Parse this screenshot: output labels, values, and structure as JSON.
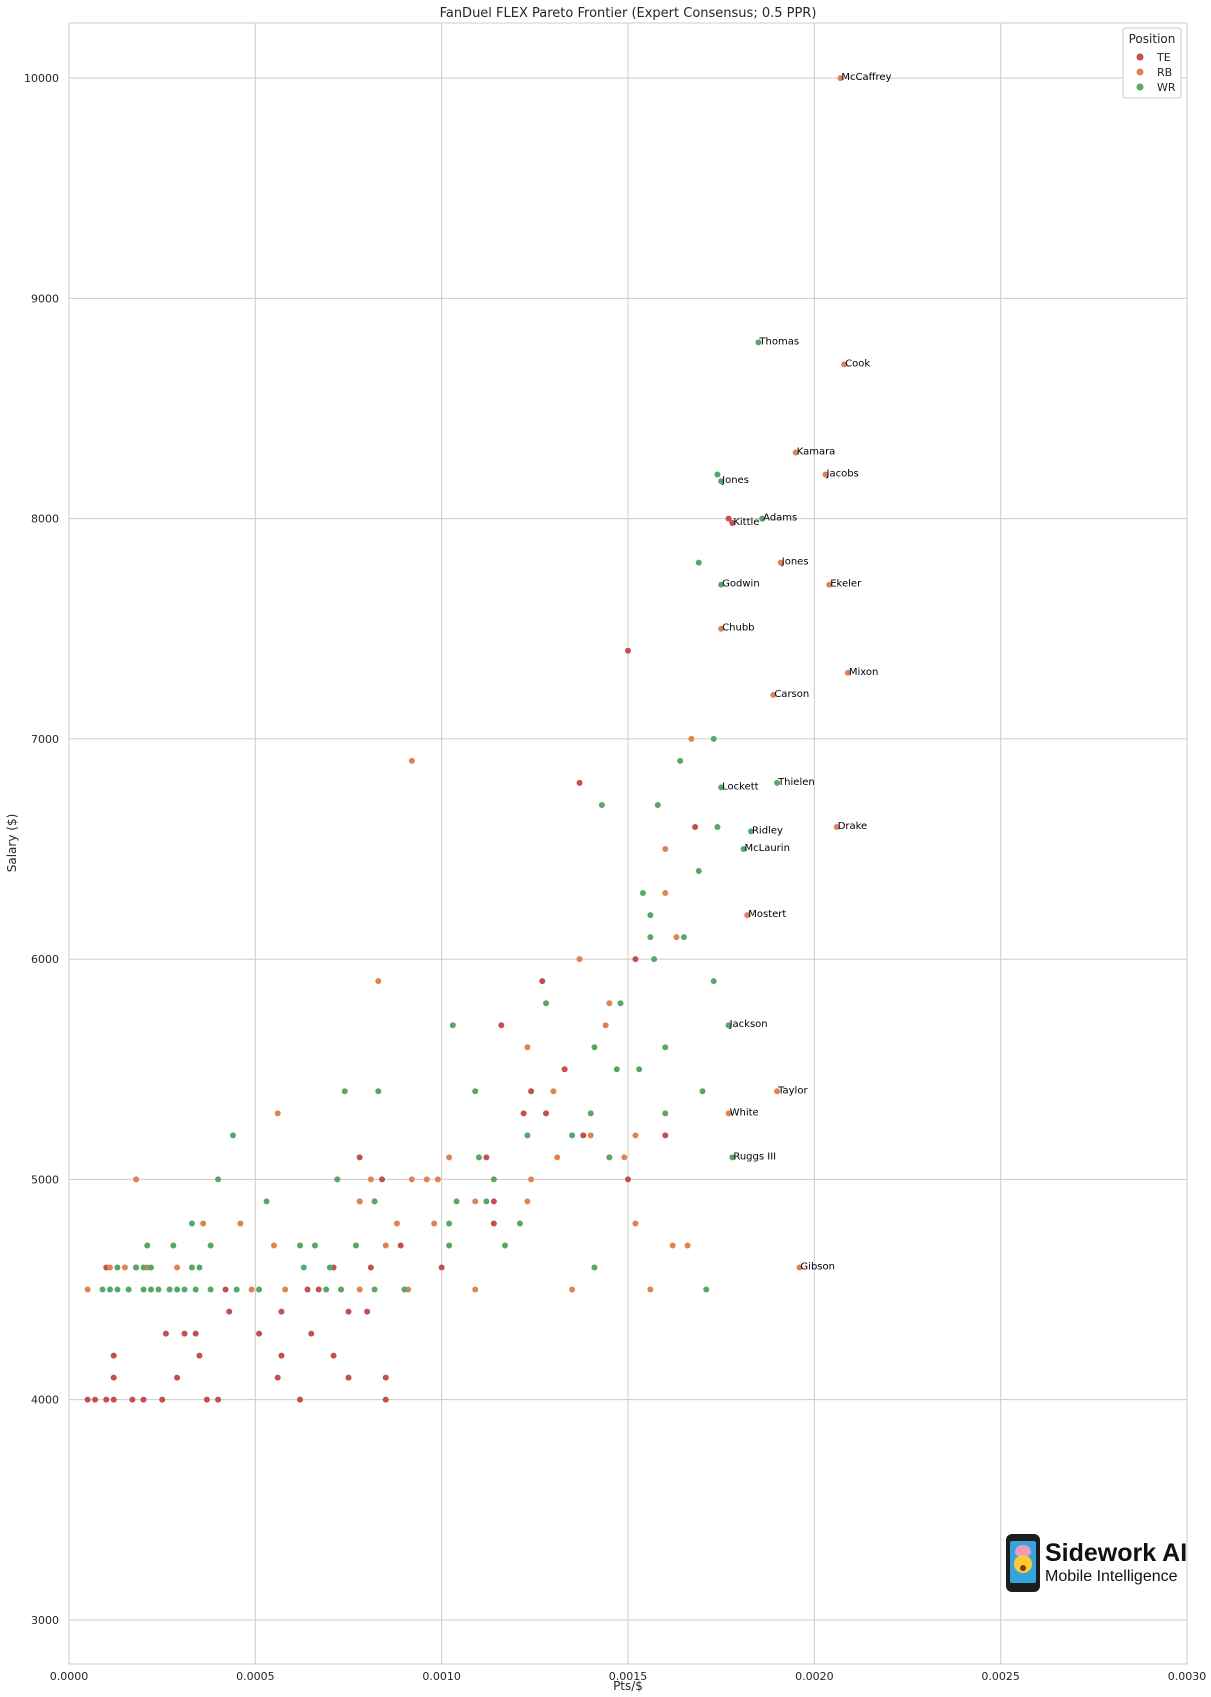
{
  "chart_data": {
    "type": "scatter",
    "title": "FanDuel FLEX Pareto Frontier (Expert Consensus; 0.5 PPR)",
    "xlabel": "Pts/$",
    "ylabel": "Salary ($)",
    "xlim": [
      0,
      0.003
    ],
    "ylim": [
      2800,
      10250
    ],
    "xticks": [
      0,
      0.0005,
      0.001,
      0.0015,
      0.002,
      0.0025,
      0.003
    ],
    "xtick_labels": [
      "0.0000",
      "0.0005",
      "0.0010",
      "0.0015",
      "0.0020",
      "0.0025",
      "0.0030"
    ],
    "yticks": [
      3000,
      4000,
      5000,
      6000,
      7000,
      8000,
      9000,
      10000
    ],
    "ytick_labels": [
      "3000",
      "4000",
      "5000",
      "6000",
      "7000",
      "8000",
      "9000",
      "10000"
    ],
    "grid": true,
    "legend": {
      "title": "Position",
      "placement": "top-right"
    },
    "series": [
      {
        "name": "TE",
        "color": "#c44e52",
        "points": [
          [
            5e-05,
            4000
          ],
          [
            7e-05,
            4000
          ],
          [
            0.0001,
            4000
          ],
          [
            0.00012,
            4000
          ],
          [
            0.00017,
            4000
          ],
          [
            0.0002,
            4000
          ],
          [
            0.00025,
            4000
          ],
          [
            0.00037,
            4000
          ],
          [
            0.0004,
            4000
          ],
          [
            0.00062,
            4000
          ],
          [
            0.00085,
            4000
          ],
          [
            0.00012,
            4100
          ],
          [
            0.00029,
            4100
          ],
          [
            0.00056,
            4100
          ],
          [
            0.00075,
            4100
          ],
          [
            0.00085,
            4100
          ],
          [
            0.00012,
            4200
          ],
          [
            0.00035,
            4200
          ],
          [
            0.00057,
            4200
          ],
          [
            0.00071,
            4200
          ],
          [
            0.00026,
            4300
          ],
          [
            0.00031,
            4300
          ],
          [
            0.00034,
            4300
          ],
          [
            0.00051,
            4300
          ],
          [
            0.00065,
            4300
          ],
          [
            0.00043,
            4400
          ],
          [
            0.00057,
            4400
          ],
          [
            0.00075,
            4400
          ],
          [
            0.0008,
            4400
          ],
          [
            0.00042,
            4500
          ],
          [
            0.00064,
            4500
          ],
          [
            0.00067,
            4500
          ],
          [
            0.0001,
            4600
          ],
          [
            0.00071,
            4600
          ],
          [
            0.00081,
            4600
          ],
          [
            0.001,
            4600
          ],
          [
            0.00089,
            4700
          ],
          [
            0.00114,
            4800
          ],
          [
            0.00078,
            4900
          ],
          [
            0.00114,
            4900
          ],
          [
            0.00084,
            5000
          ],
          [
            0.0015,
            5000
          ],
          [
            0.00078,
            5100
          ],
          [
            0.00112,
            5100
          ],
          [
            0.00138,
            5200
          ],
          [
            0.0016,
            5200
          ],
          [
            0.00122,
            5300
          ],
          [
            0.00128,
            5300
          ],
          [
            0.00124,
            5400
          ],
          [
            0.00133,
            5500
          ],
          [
            0.00116,
            5700
          ],
          [
            0.00127,
            5900
          ],
          [
            0.00152,
            6000
          ],
          [
            0.00168,
            6600
          ],
          [
            0.00137,
            6800
          ],
          [
            0.0015,
            7400
          ],
          [
            0.00177,
            8000
          ]
        ]
      },
      {
        "name": "RB",
        "color": "#dd8452",
        "points": [
          [
            5e-05,
            4500
          ],
          [
            0.00049,
            4500
          ],
          [
            0.00058,
            4500
          ],
          [
            0.00078,
            4500
          ],
          [
            0.00091,
            4500
          ],
          [
            0.00109,
            4500
          ],
          [
            0.00135,
            4500
          ],
          [
            0.00156,
            4500
          ],
          [
            0.00011,
            4600
          ],
          [
            0.00015,
            4600
          ],
          [
            0.00018,
            4600
          ],
          [
            0.00021,
            4600
          ],
          [
            0.00029,
            4600
          ],
          [
            0.00036,
            4800
          ],
          [
            0.00046,
            4800
          ],
          [
            0.00088,
            4800
          ],
          [
            0.00098,
            4800
          ],
          [
            0.00152,
            4800
          ],
          [
            0.00055,
            4700
          ],
          [
            0.00085,
            4700
          ],
          [
            0.00162,
            4700
          ],
          [
            0.00166,
            4700
          ],
          [
            0.00078,
            4900
          ],
          [
            0.00082,
            4900
          ],
          [
            0.00109,
            4900
          ],
          [
            0.00123,
            4900
          ],
          [
            0.00018,
            5000
          ],
          [
            0.00081,
            5000
          ],
          [
            0.00092,
            5000
          ],
          [
            0.00096,
            5000
          ],
          [
            0.00099,
            5000
          ],
          [
            0.00124,
            5000
          ],
          [
            0.00102,
            5100
          ],
          [
            0.00131,
            5100
          ],
          [
            0.00149,
            5100
          ],
          [
            0.0014,
            5200
          ],
          [
            0.00152,
            5200
          ],
          [
            0.00056,
            5300
          ],
          [
            0.0013,
            5400
          ],
          [
            0.00123,
            5600
          ],
          [
            0.00144,
            5700
          ],
          [
            0.00145,
            5800
          ],
          [
            0.00083,
            5900
          ],
          [
            0.00137,
            6000
          ],
          [
            0.00163,
            6100
          ],
          [
            0.0016,
            6300
          ],
          [
            0.0016,
            6500
          ],
          [
            0.00092,
            6900
          ],
          [
            0.00167,
            7000
          ]
        ]
      },
      {
        "name": "WR",
        "color": "#55a868",
        "points": [
          [
            9e-05,
            4500
          ],
          [
            0.00011,
            4500
          ],
          [
            0.00013,
            4500
          ],
          [
            0.00016,
            4500
          ],
          [
            0.0002,
            4500
          ],
          [
            0.00022,
            4500
          ],
          [
            0.00024,
            4500
          ],
          [
            0.00027,
            4500
          ],
          [
            0.00029,
            4500
          ],
          [
            0.00031,
            4500
          ],
          [
            0.00034,
            4500
          ],
          [
            0.00038,
            4500
          ],
          [
            0.00045,
            4500
          ],
          [
            0.00051,
            4500
          ],
          [
            0.00069,
            4500
          ],
          [
            0.00073,
            4500
          ],
          [
            0.00082,
            4500
          ],
          [
            0.0009,
            4500
          ],
          [
            0.00171,
            4500
          ],
          [
            0.00013,
            4600
          ],
          [
            0.00018,
            4600
          ],
          [
            0.0002,
            4600
          ],
          [
            0.00022,
            4600
          ],
          [
            0.00033,
            4600
          ],
          [
            0.00035,
            4600
          ],
          [
            0.00063,
            4600
          ],
          [
            0.0007,
            4600
          ],
          [
            0.00141,
            4600
          ],
          [
            0.00021,
            4700
          ],
          [
            0.00028,
            4700
          ],
          [
            0.00038,
            4700
          ],
          [
            0.00062,
            4700
          ],
          [
            0.00066,
            4700
          ],
          [
            0.00077,
            4700
          ],
          [
            0.00102,
            4700
          ],
          [
            0.00117,
            4700
          ],
          [
            0.00033,
            4800
          ],
          [
            0.00102,
            4800
          ],
          [
            0.00121,
            4800
          ],
          [
            0.00053,
            4900
          ],
          [
            0.00082,
            4900
          ],
          [
            0.00104,
            4900
          ],
          [
            0.00112,
            4900
          ],
          [
            0.0004,
            5000
          ],
          [
            0.00072,
            5000
          ],
          [
            0.00114,
            5000
          ],
          [
            0.0011,
            5100
          ],
          [
            0.00145,
            5100
          ],
          [
            0.00044,
            5200
          ],
          [
            0.00123,
            5200
          ],
          [
            0.00135,
            5200
          ],
          [
            0.0014,
            5300
          ],
          [
            0.0016,
            5300
          ],
          [
            0.00074,
            5400
          ],
          [
            0.00083,
            5400
          ],
          [
            0.00109,
            5400
          ],
          [
            0.0017,
            5400
          ],
          [
            0.00147,
            5500
          ],
          [
            0.00153,
            5500
          ],
          [
            0.00141,
            5600
          ],
          [
            0.0016,
            5600
          ],
          [
            0.00103,
            5700
          ],
          [
            0.00128,
            5800
          ],
          [
            0.00148,
            5800
          ],
          [
            0.00173,
            5900
          ],
          [
            0.00157,
            6000
          ],
          [
            0.00156,
            6100
          ],
          [
            0.00165,
            6100
          ],
          [
            0.00156,
            6200
          ],
          [
            0.00154,
            6300
          ],
          [
            0.00169,
            6400
          ],
          [
            0.00174,
            6600
          ],
          [
            0.00143,
            6700
          ],
          [
            0.00158,
            6700
          ],
          [
            0.00164,
            6900
          ],
          [
            0.00173,
            7000
          ],
          [
            0.00169,
            7800
          ],
          [
            0.00174,
            8200
          ]
        ]
      }
    ],
    "labeled_points": [
      {
        "label": "McCaffrey",
        "position": "RB",
        "x": 0.00207,
        "y": 10000
      },
      {
        "label": "Thomas",
        "position": "WR",
        "x": 0.00185,
        "y": 8800
      },
      {
        "label": "Cook",
        "position": "RB",
        "x": 0.00208,
        "y": 8700
      },
      {
        "label": "Kamara",
        "position": "RB",
        "x": 0.00195,
        "y": 8300
      },
      {
        "label": "Jones",
        "position": "WR",
        "x": 0.00175,
        "y": 8170
      },
      {
        "label": "Jacobs",
        "position": "RB",
        "x": 0.00203,
        "y": 8200
      },
      {
        "label": "Adams",
        "position": "WR",
        "x": 0.00186,
        "y": 8000
      },
      {
        "label": "Kittle",
        "position": "TE",
        "x": 0.00178,
        "y": 7980
      },
      {
        "label": "Jones",
        "position": "RB",
        "x": 0.00191,
        "y": 7800
      },
      {
        "label": "Godwin",
        "position": "WR",
        "x": 0.00175,
        "y": 7700
      },
      {
        "label": "Ekeler",
        "position": "RB",
        "x": 0.00204,
        "y": 7700
      },
      {
        "label": "Chubb",
        "position": "RB",
        "x": 0.00175,
        "y": 7500
      },
      {
        "label": "Mixon",
        "position": "RB",
        "x": 0.00209,
        "y": 7300
      },
      {
        "label": "Carson",
        "position": "RB",
        "x": 0.00189,
        "y": 7200
      },
      {
        "label": "Lockett",
        "position": "WR",
        "x": 0.00175,
        "y": 6780
      },
      {
        "label": "Thielen",
        "position": "WR",
        "x": 0.0019,
        "y": 6800
      },
      {
        "label": "Drake",
        "position": "RB",
        "x": 0.00206,
        "y": 6600
      },
      {
        "label": "Ridley",
        "position": "WR",
        "x": 0.00183,
        "y": 6580
      },
      {
        "label": "McLaurin",
        "position": "WR",
        "x": 0.00181,
        "y": 6500
      },
      {
        "label": "Mostert",
        "position": "RB",
        "x": 0.00182,
        "y": 6200
      },
      {
        "label": "Jackson",
        "position": "WR",
        "x": 0.00177,
        "y": 5700
      },
      {
        "label": "Taylor",
        "position": "RB",
        "x": 0.0019,
        "y": 5400
      },
      {
        "label": "White",
        "position": "RB",
        "x": 0.00177,
        "y": 5300
      },
      {
        "label": "Ruggs III",
        "position": "WR",
        "x": 0.00178,
        "y": 5100
      },
      {
        "label": "Gibson",
        "position": "RB",
        "x": 0.00196,
        "y": 4600
      }
    ]
  },
  "logo": {
    "brand": "Sidework AI",
    "tagline": "Mobile Intelligence"
  }
}
